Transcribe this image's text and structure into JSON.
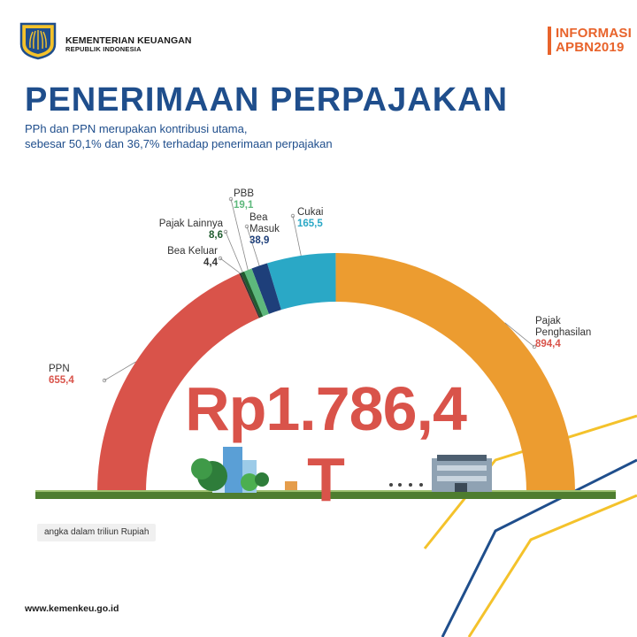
{
  "header": {
    "org_name": "KEMENTERIAN KEUANGAN",
    "org_sub": "REPUBLIK INDONESIA",
    "badge_line1": "INFORMASI",
    "badge_line2a": "APBN",
    "badge_line2b": "2019"
  },
  "title": "PENERIMAAN PERPAJAKAN",
  "subtitle_line1": "PPh dan PPN merupakan kontribusi utama,",
  "subtitle_line2": "sebesar 50,1% dan 36,7% terhadap penerimaan perpajakan",
  "total_label": "Rp1.786,4 T",
  "unit_note": "angka dalam triliun Rupiah",
  "website": "www.kemenkeu.go.id",
  "colors": {
    "title": "#1f4e8c",
    "pajak_penghasilan": "#ec9c30",
    "ppn": "#d9534a",
    "cukai": "#2aa8c6",
    "bea_masuk": "#1e3f7a",
    "pbb": "#5db87c",
    "pajak_lainnya": "#1f5c2e",
    "bea_keluar": "#333333",
    "ground": "#4e7d2f"
  },
  "chart_data": {
    "type": "pie",
    "variant": "semicircle-donut",
    "order": "counter-clockwise from right",
    "total": 1786.4,
    "slices": [
      {
        "name_line1": "Pajak",
        "name_line2": "Penghasilan",
        "value": 894.4,
        "value_label": "894,4",
        "color": "#ec9c30"
      },
      {
        "name_line1": "Cukai",
        "name_line2": "",
        "value": 165.5,
        "value_label": "165,5",
        "color": "#2aa8c6"
      },
      {
        "name_line1": "Bea",
        "name_line2": "Masuk",
        "value": 38.9,
        "value_label": "38,9",
        "color": "#1e3f7a"
      },
      {
        "name_line1": "PBB",
        "name_line2": "",
        "value": 19.1,
        "value_label": "19,1",
        "color": "#5db87c"
      },
      {
        "name_line1": "Pajak Lainnya",
        "name_line2": "",
        "value": 8.6,
        "value_label": "8,6",
        "color": "#1f5c2e"
      },
      {
        "name_line1": "Bea Keluar",
        "name_line2": "",
        "value": 4.4,
        "value_label": "4,4",
        "color": "#333333"
      },
      {
        "name_line1": "PPN",
        "name_line2": "",
        "value": 655.4,
        "value_label": "655,4",
        "color": "#d9534a"
      }
    ]
  }
}
